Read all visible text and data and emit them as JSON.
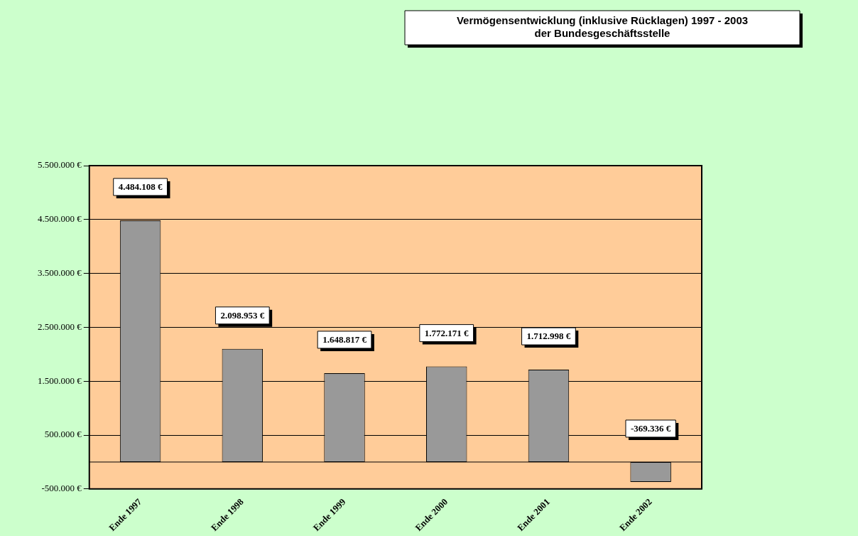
{
  "chart_data": {
    "type": "bar",
    "title": "Vermögensentwicklung (inklusive Rücklagen) 1997 - 2003",
    "subtitle": "der Bundesgeschäftsstelle",
    "categories": [
      "Ende 1997",
      "Ende 1998",
      "Ende 1999",
      "Ende 2000",
      "Ende 2001",
      "Ende 2002"
    ],
    "values": [
      4484108,
      2098953,
      1648817,
      1772171,
      1712998,
      -369336
    ],
    "value_labels": [
      "4.484.108 €",
      "2.098.953 €",
      "1.648.817 €",
      "1.772.171 €",
      "1.712.998 €",
      "-369.336 €"
    ],
    "color": "#999999",
    "ylim": [
      -500000,
      5500000
    ],
    "yticks": [
      {
        "value": -500000,
        "label": "-500.000 €"
      },
      {
        "value": 500000,
        "label": "500.000 €"
      },
      {
        "value": 1500000,
        "label": "1.500.000 €"
      },
      {
        "value": 2500000,
        "label": "2.500.000 €"
      },
      {
        "value": 3500000,
        "label": "3.500.000 €"
      },
      {
        "value": 4500000,
        "label": "4.500.000 €"
      },
      {
        "value": 5500000,
        "label": "5.500.000 €"
      }
    ],
    "grid": "y",
    "legend": false
  }
}
